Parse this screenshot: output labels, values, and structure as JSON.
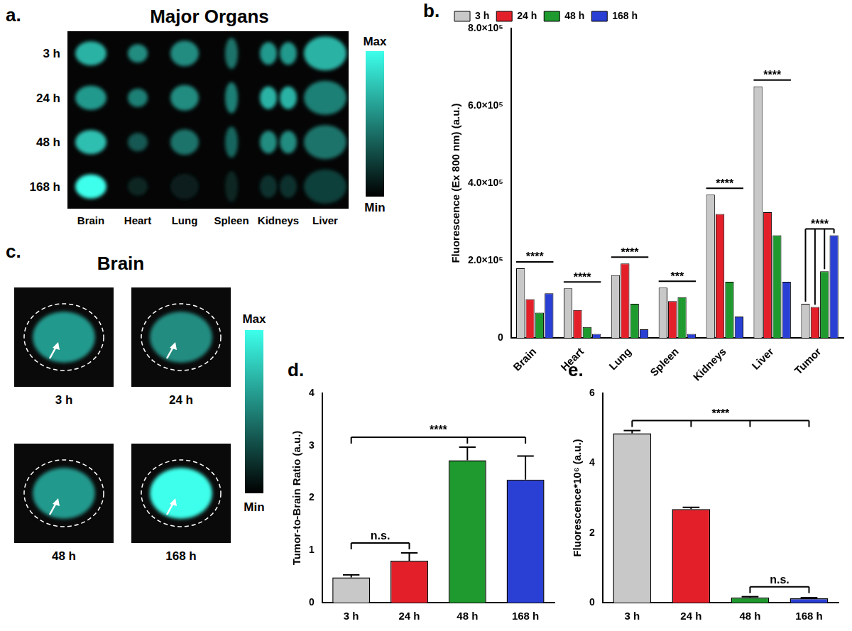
{
  "chart_data": [
    {
      "type": "bar",
      "panel": "b.",
      "y_label": "Fluorescence (Ex 800 nm) (a.u.)",
      "categories": [
        "Brain",
        "Heart",
        "Lung",
        "Spleen",
        "Kidneys",
        "Liver",
        "Tumor"
      ],
      "series": [
        {
          "name": "3 h",
          "color": "#c8c8c8",
          "values": [
            180000,
            128000,
            162000,
            130000,
            370000,
            650000,
            88000
          ]
        },
        {
          "name": "24 h",
          "color": "#e3202a",
          "values": [
            100000,
            72000,
            192000,
            95000,
            320000,
            325000,
            80000
          ]
        },
        {
          "name": "48 h",
          "color": "#1f9a2e",
          "values": [
            65000,
            28000,
            88000,
            105000,
            145000,
            265000,
            172000
          ]
        },
        {
          "name": "168 h",
          "color": "#2a3fd4",
          "values": [
            115000,
            10000,
            22000,
            10000,
            55000,
            145000,
            265000
          ]
        }
      ],
      "ylim": [
        0,
        800000
      ],
      "yticks": [
        0,
        {
          "value": 200000,
          "label": "2.0×10⁵"
        },
        {
          "value": 400000,
          "label": "4.0×10⁵"
        },
        {
          "value": 600000,
          "label": "6.0×10⁵"
        },
        {
          "value": 800000,
          "label": "8.0×10⁵"
        }
      ],
      "grid": false,
      "legend": "upper left",
      "annotations": [
        {
          "category": "Brain",
          "text": "****"
        },
        {
          "category": "Heart",
          "text": "****"
        },
        {
          "category": "Lung",
          "text": "****"
        },
        {
          "category": "Spleen",
          "text": "***"
        },
        {
          "category": "Kidneys",
          "text": "****"
        },
        {
          "category": "Liver",
          "text": "****"
        },
        {
          "category": "Tumor",
          "text": "****",
          "from": "3 h",
          "to": [
            "24 h",
            "48 h",
            "168 h"
          ]
        }
      ]
    },
    {
      "type": "bar",
      "panel": "d.",
      "y_label": "Tumor-to-Brain Ratio (a.u.)",
      "categories": [
        "3 h",
        "24 h",
        "48 h",
        "168 h"
      ],
      "values": [
        0.48,
        0.8,
        2.72,
        2.35
      ],
      "errors": [
        0.05,
        0.15,
        0.25,
        0.45
      ],
      "colors": [
        "#c8c8c8",
        "#e3202a",
        "#1f9a2e",
        "#2a3fd4"
      ],
      "ylim": [
        0,
        4
      ],
      "yticks": [
        0,
        1,
        2,
        3,
        4
      ],
      "grid": false,
      "annotations": [
        {
          "text": "n.s.",
          "from": "3 h",
          "to": [
            "24 h"
          ]
        },
        {
          "text": "****",
          "from": "3 h",
          "to": [
            "48 h",
            "168 h"
          ]
        }
      ]
    },
    {
      "type": "bar",
      "panel": "e.",
      "y_label": "Fluorescence*10⁶ (a.u.)",
      "categories": [
        "3 h",
        "24 h",
        "48 h",
        "168 h"
      ],
      "values": [
        4.85,
        2.68,
        0.15,
        0.12
      ],
      "errors": [
        0.08,
        0.05,
        0.02,
        0.02
      ],
      "colors": [
        "#c8c8c8",
        "#e3202a",
        "#1f9a2e",
        "#2a3fd4"
      ],
      "ylim": [
        0,
        6
      ],
      "yticks": [
        0,
        2,
        4,
        6
      ],
      "grid": false,
      "annotations": [
        {
          "text": "n.s.",
          "from": "48 h",
          "to": [
            "168 h"
          ]
        },
        {
          "text": "****",
          "from": "3 h",
          "to": [
            "24 h",
            "48 h",
            "168 h"
          ]
        }
      ]
    }
  ],
  "images": [
    {
      "panel": "a.",
      "title": "Major Organs",
      "rows": [
        "3 h",
        "24 h",
        "48 h",
        "168 h"
      ],
      "columns": [
        "Brain",
        "Heart",
        "Lung",
        "Spleen",
        "Kidneys",
        "Liver"
      ],
      "intensity": [
        [
          0.7,
          0.55,
          0.55,
          0.45,
          0.6,
          0.7
        ],
        [
          0.6,
          0.5,
          0.55,
          0.5,
          0.7,
          0.5
        ],
        [
          0.75,
          0.35,
          0.45,
          0.4,
          0.55,
          0.45
        ],
        [
          1.0,
          0.15,
          0.12,
          0.15,
          0.2,
          0.25
        ]
      ],
      "clim": [
        0,
        1
      ],
      "colorbar": {
        "max_label": "Max",
        "min_label": "Min"
      }
    },
    {
      "panel": "c.",
      "title": "Brain",
      "captions": [
        "3 h",
        "24 h",
        "48 h",
        "168 h"
      ],
      "intensity": [
        0.6,
        0.55,
        0.6,
        1.0
      ],
      "clim": [
        0,
        1
      ],
      "colorbar": {
        "max_label": "Max",
        "min_label": "Min"
      }
    }
  ]
}
